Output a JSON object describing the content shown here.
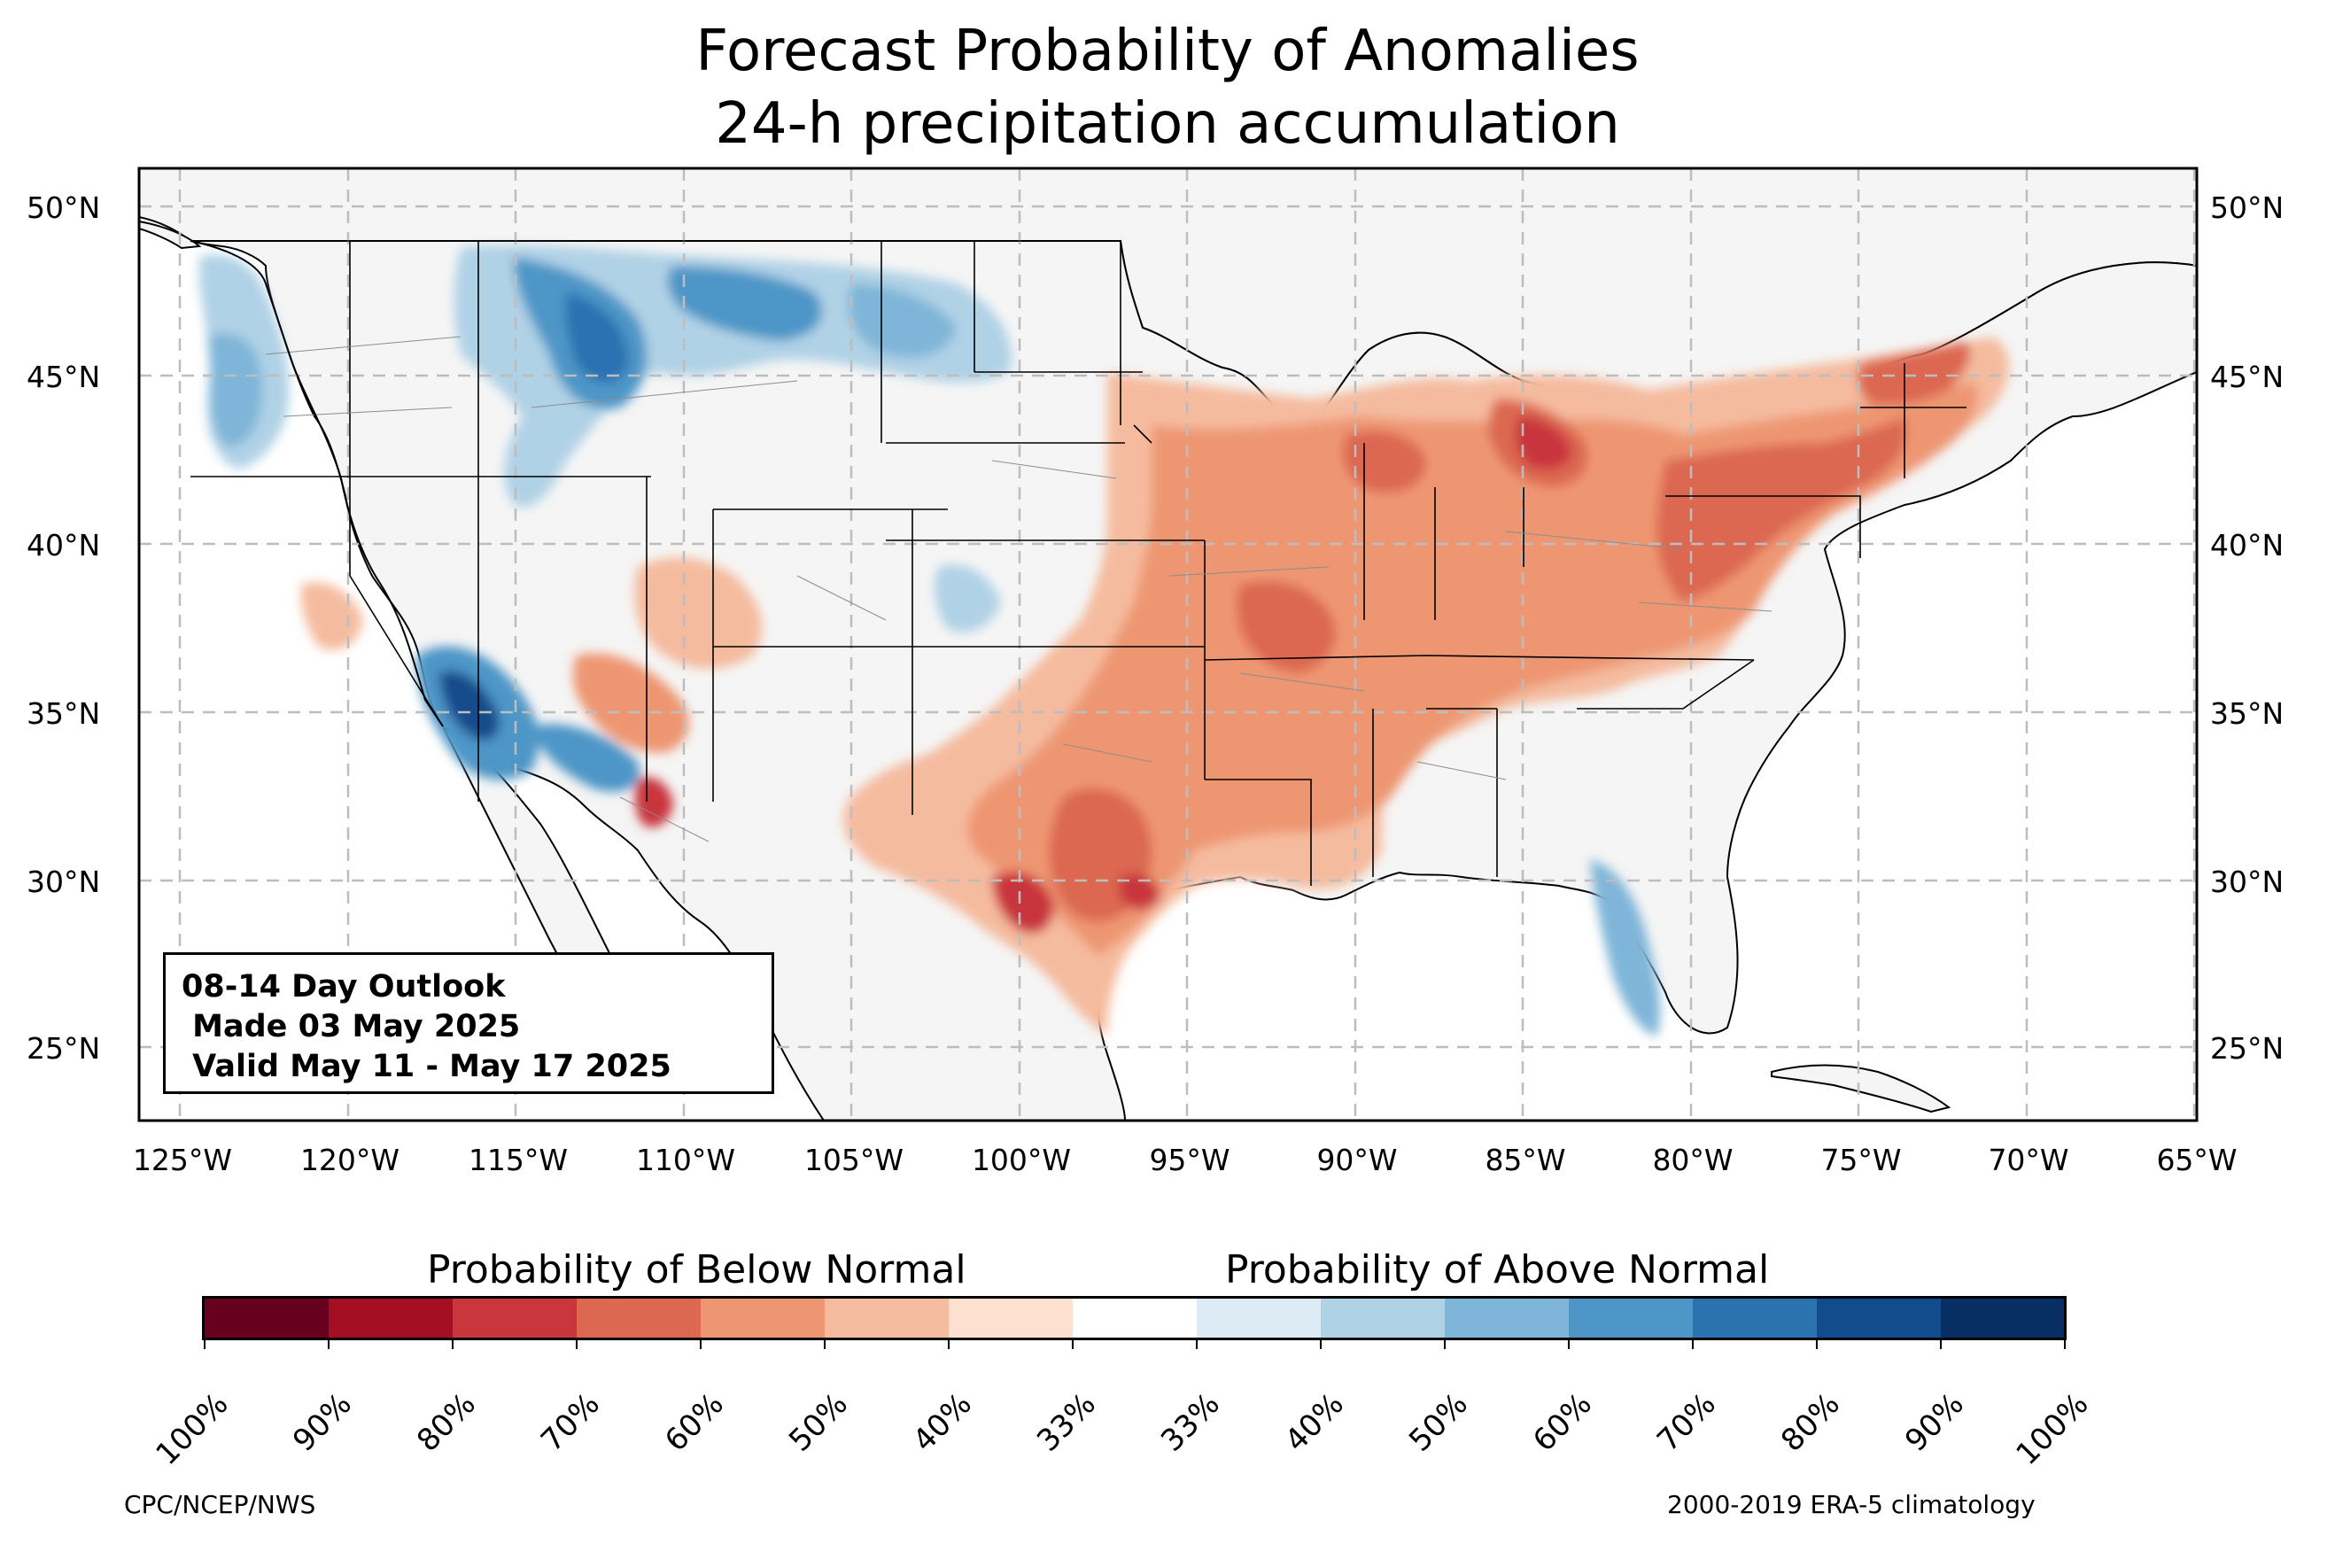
{
  "title": "Forecast Probability of Anomalies",
  "subtitle": "24-h precipitation accumulation",
  "map": {
    "extent": {
      "lon": [
        -126.3,
        -64.9
      ],
      "lat": [
        22.7,
        51.0
      ]
    },
    "lat_labels": [
      "50°N",
      "45°N",
      "40°N",
      "35°N",
      "30°N",
      "25°N"
    ],
    "lat_values": [
      50,
      45,
      40,
      35,
      30,
      25
    ],
    "lon_labels": [
      "125°W",
      "120°W",
      "115°W",
      "110°W",
      "105°W",
      "100°W",
      "95°W",
      "90°W",
      "85°W",
      "80°W",
      "75°W",
      "70°W",
      "65°W"
    ],
    "lon_values": [
      -125,
      -120,
      -115,
      -110,
      -105,
      -100,
      -95,
      -90,
      -85,
      -80,
      -75,
      -70,
      -65
    ],
    "gridlines": true,
    "land_color": "#f5f5f5",
    "ocean_color": "#ffffff"
  },
  "outlook": {
    "line1": "08-14 Day Outlook",
    "line2": " Made 03 May 2025",
    "line3": " Valid May 11 - May 17 2025"
  },
  "colorbar": {
    "below_label": "Probability of Below Normal",
    "above_label": "Probability of Above Normal",
    "ticks": [
      "100%",
      "90%",
      "80%",
      "70%",
      "60%",
      "50%",
      "40%",
      "33%",
      "33%",
      "40%",
      "50%",
      "60%",
      "70%",
      "80%",
      "90%",
      "100%"
    ],
    "colors": [
      "#67001f",
      "#a50f24",
      "#c9363d",
      "#dc6851",
      "#ee9672",
      "#f5bb9f",
      "#fde0cf",
      "#ffffff",
      "#dcebf4",
      "#b0d2e6",
      "#7fb5d8",
      "#4d96c7",
      "#2b72b1",
      "#134c8c",
      "#082f63"
    ]
  },
  "footer": {
    "left": "CPC/NCEP/NWS",
    "right": "2000-2019 ERA-5 climatology"
  }
}
